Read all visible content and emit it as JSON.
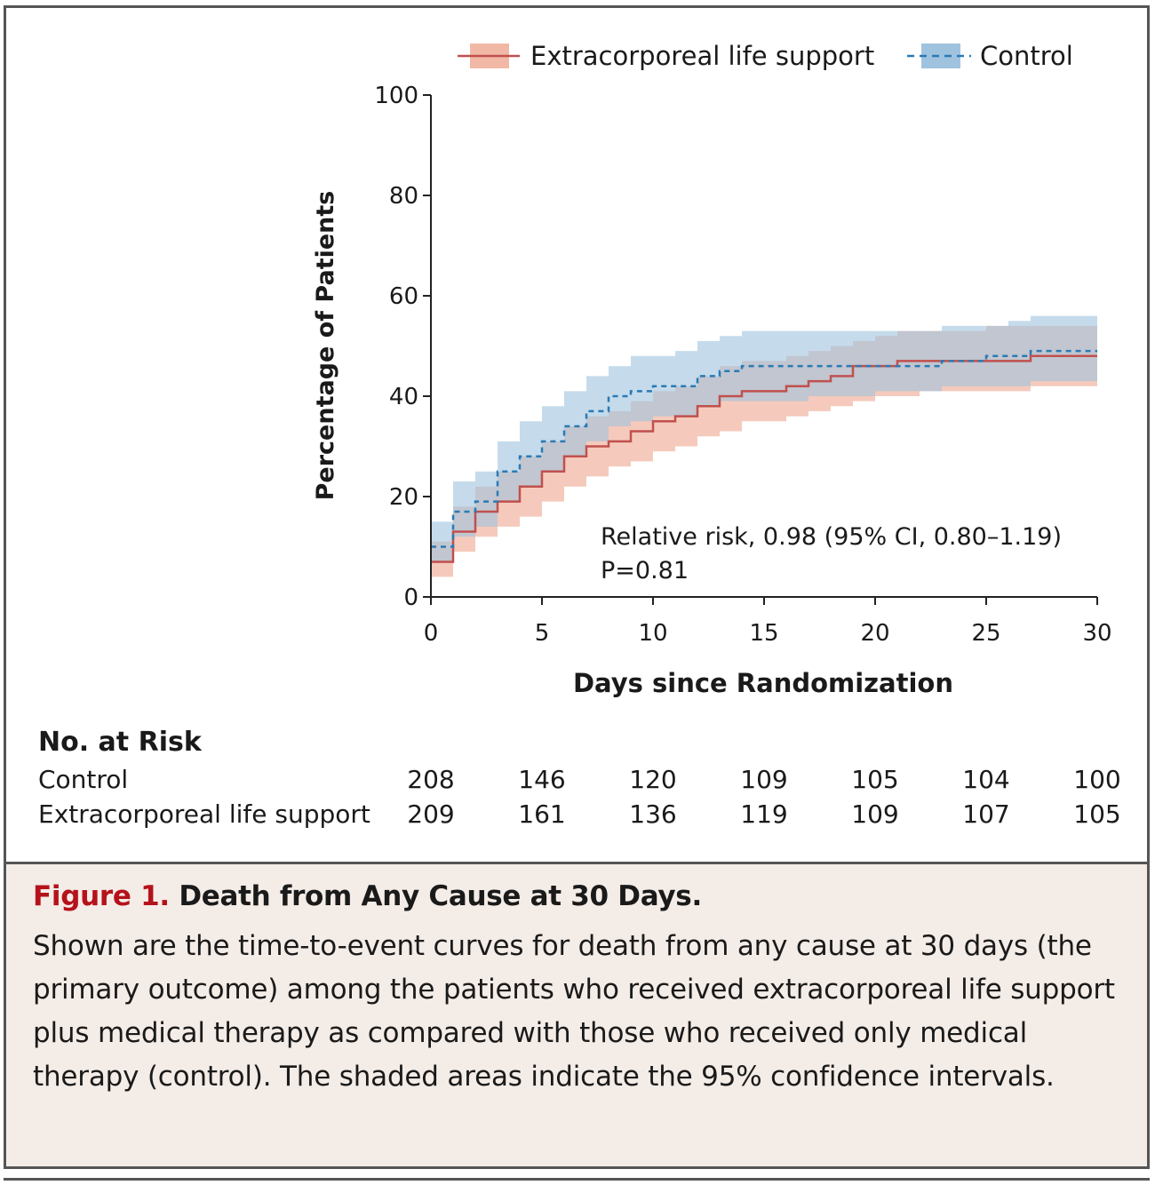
{
  "chart_data": {
    "type": "line",
    "xlabel": "Days since Randomization",
    "ylabel": "Percentage of Patients",
    "xlim": [
      0,
      30
    ],
    "ylim": [
      0,
      100
    ],
    "x_ticks": [
      0,
      5,
      10,
      15,
      20,
      25,
      30
    ],
    "y_ticks": [
      0,
      20,
      40,
      60,
      80,
      100
    ],
    "grid": false,
    "legend_position": "top",
    "annotation": {
      "line1": "Relative risk, 0.98 (95% CI, 0.80–1.19)",
      "line2": "P=0.81"
    },
    "series": [
      {
        "name": "Extracorporeal life support",
        "color": "#c0504d",
        "band_color": "#f2b8a6",
        "line_style": "solid",
        "x": [
          0,
          1,
          2,
          3,
          4,
          5,
          6,
          7,
          8,
          9,
          10,
          11,
          12,
          13,
          14,
          15,
          16,
          17,
          18,
          19,
          20,
          21,
          22,
          23,
          24,
          25,
          26,
          27,
          28,
          29,
          30
        ],
        "y": [
          7,
          13,
          17,
          19,
          22,
          25,
          28,
          30,
          31,
          33,
          35,
          36,
          38,
          40,
          41,
          41,
          42,
          43,
          44,
          46,
          46,
          47,
          47,
          47,
          47,
          47,
          47,
          48,
          48,
          48,
          48
        ],
        "lower": [
          4,
          9,
          12,
          14,
          16,
          19,
          22,
          24,
          26,
          27,
          29,
          30,
          32,
          33,
          35,
          35,
          36,
          37,
          38,
          39,
          40,
          40,
          41,
          41,
          41,
          41,
          41,
          42,
          42,
          42,
          42
        ],
        "upper": [
          11,
          18,
          22,
          25,
          28,
          31,
          34,
          36,
          37,
          39,
          41,
          42,
          44,
          46,
          47,
          47,
          48,
          49,
          50,
          51,
          52,
          53,
          53,
          53,
          53,
          54,
          54,
          54,
          54,
          54,
          54
        ]
      },
      {
        "name": "Control",
        "color": "#2a7ab5",
        "band_color": "#9fc3de",
        "line_style": "dashed",
        "x": [
          0,
          1,
          2,
          3,
          4,
          5,
          6,
          7,
          8,
          9,
          10,
          11,
          12,
          13,
          14,
          15,
          16,
          17,
          18,
          19,
          20,
          21,
          22,
          23,
          24,
          25,
          26,
          27,
          28,
          29,
          30
        ],
        "y": [
          10,
          17,
          19,
          25,
          28,
          31,
          34,
          37,
          40,
          41,
          42,
          42,
          44,
          45,
          46,
          46,
          46,
          46,
          46,
          46,
          46,
          46,
          46,
          47,
          47,
          48,
          48,
          49,
          49,
          49,
          49
        ],
        "lower": [
          7,
          12,
          14,
          19,
          22,
          25,
          28,
          31,
          34,
          35,
          36,
          36,
          38,
          39,
          39,
          39,
          39,
          40,
          40,
          40,
          41,
          41,
          41,
          42,
          42,
          42,
          42,
          43,
          43,
          43,
          43
        ],
        "upper": [
          15,
          23,
          25,
          31,
          35,
          38,
          41,
          44,
          46,
          48,
          48,
          49,
          51,
          52,
          53,
          53,
          53,
          53,
          53,
          53,
          53,
          53,
          53,
          54,
          54,
          54,
          55,
          56,
          56,
          56,
          56
        ]
      }
    ],
    "risk_table": {
      "title": "No. at Risk",
      "timepoints": [
        0,
        5,
        10,
        15,
        20,
        25,
        30
      ],
      "rows": [
        {
          "label": "Control",
          "values": [
            "208",
            "146",
            "120",
            "109",
            "105",
            "104",
            "100"
          ]
        },
        {
          "label": "Extracorporeal life support",
          "values": [
            "209",
            "161",
            "136",
            "119",
            "109",
            "107",
            "105"
          ]
        }
      ]
    }
  },
  "caption": {
    "figure_label": "Figure 1.",
    "title": "Death from Any Cause at 30 Days.",
    "body": "Shown are the time-to-event curves for death from any cause at 30 days (the primary outcome) among the patients who received extracorporeal life support plus medical therapy as compared with those who received only medical therapy (control). The shaded areas indicate the 95% confidence intervals."
  }
}
